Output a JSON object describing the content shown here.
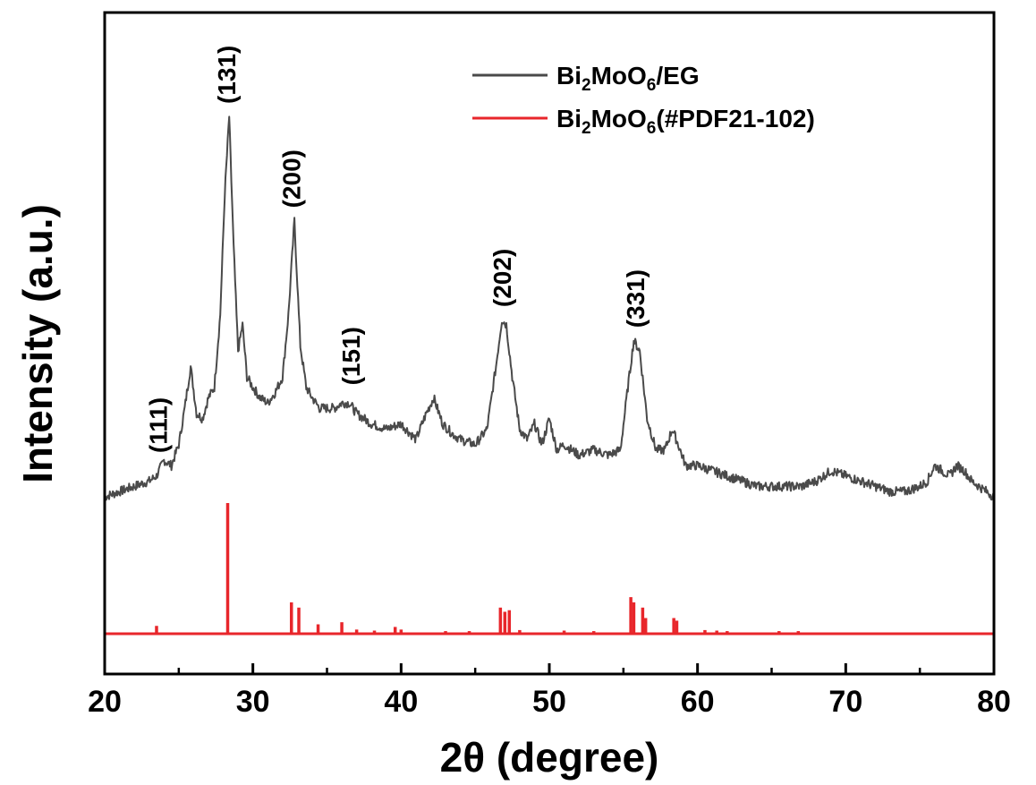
{
  "chart_data": {
    "type": "line",
    "xlabel": "2θ (degree)",
    "ylabel": "Intensity (a.u.)",
    "xlim": [
      20,
      80
    ],
    "ylim": [
      0,
      100
    ],
    "x_ticks": [
      "20",
      "30",
      "40",
      "50",
      "60",
      "70",
      "80"
    ],
    "grid": false,
    "legend_position": "top-right",
    "series": [
      {
        "name": "Bi2MoO6/EG",
        "name_parts": {
          "a": "Bi",
          "sub1": "2",
          "b": "MoO",
          "sub2": "6",
          "c": "/EG"
        },
        "color": "#4a4a4a",
        "x": [
          20,
          21,
          22,
          23,
          23.5,
          24,
          24.5,
          25,
          25.4,
          25.8,
          26.2,
          26.6,
          27,
          27.4,
          27.8,
          28.1,
          28.4,
          28.7,
          29,
          29.3,
          29.6,
          30,
          30.5,
          31,
          31.5,
          32,
          32.4,
          32.8,
          33.2,
          33.6,
          34,
          34.5,
          35,
          35.5,
          36,
          36.5,
          37,
          37.5,
          38,
          39,
          40,
          41,
          41.7,
          42.2,
          42.8,
          43.5,
          44,
          45,
          45.8,
          46.4,
          46.8,
          47.1,
          47.5,
          48,
          48.5,
          49,
          49.5,
          50,
          50.5,
          51,
          52,
          53,
          54,
          54.8,
          55.3,
          55.7,
          56.1,
          56.6,
          57.2,
          57.8,
          58.3,
          58.7,
          59.2,
          60,
          61,
          62,
          63,
          64,
          65,
          66,
          67,
          68,
          69,
          70,
          71,
          72,
          73,
          74,
          75,
          75.5,
          76,
          76.5,
          77,
          77.5,
          78,
          78.5,
          79,
          79.5,
          80
        ],
        "y": [
          27,
          28,
          29,
          30,
          31,
          34,
          33,
          37,
          44,
          52,
          43,
          42,
          46,
          48,
          62,
          85,
          100,
          75,
          55,
          60,
          50,
          48,
          46,
          45,
          47,
          50,
          62,
          80,
          56,
          48,
          46,
          44,
          44,
          44,
          45,
          45,
          43,
          42,
          41,
          40,
          41,
          38,
          43,
          46,
          41,
          39,
          38,
          37,
          40,
          52,
          61,
          60,
          50,
          40,
          38,
          41,
          37,
          42,
          36,
          37,
          35,
          36,
          35,
          36,
          48,
          57,
          55,
          42,
          36,
          36,
          40,
          37,
          33,
          33,
          32,
          31,
          30,
          29,
          29,
          29,
          29,
          30,
          32,
          31,
          30,
          29,
          28,
          28,
          29,
          30,
          33,
          32,
          31,
          33,
          32,
          30,
          29,
          28,
          27
        ]
      },
      {
        "name": "Bi2MoO6(#PDF21-102)",
        "name_parts": {
          "a": "Bi",
          "sub1": "2",
          "b": "MoO",
          "sub2": "6",
          "c": "(#PDF21-102)"
        },
        "color": "#e8262b",
        "baseline": 0,
        "sticks": [
          {
            "x": 23.5,
            "h": 1.5
          },
          {
            "x": 28.3,
            "h": 25
          },
          {
            "x": 32.6,
            "h": 6
          },
          {
            "x": 33.1,
            "h": 5
          },
          {
            "x": 34.4,
            "h": 1.8
          },
          {
            "x": 36.0,
            "h": 2.2
          },
          {
            "x": 37.0,
            "h": 0.8
          },
          {
            "x": 38.2,
            "h": 0.6
          },
          {
            "x": 39.6,
            "h": 1.3
          },
          {
            "x": 40.0,
            "h": 0.8
          },
          {
            "x": 43.0,
            "h": 0.5
          },
          {
            "x": 44.6,
            "h": 0.5
          },
          {
            "x": 46.7,
            "h": 5
          },
          {
            "x": 47.0,
            "h": 4.2
          },
          {
            "x": 47.3,
            "h": 4.5
          },
          {
            "x": 48.0,
            "h": 0.7
          },
          {
            "x": 51.0,
            "h": 0.6
          },
          {
            "x": 53.0,
            "h": 0.5
          },
          {
            "x": 55.5,
            "h": 7
          },
          {
            "x": 55.7,
            "h": 6
          },
          {
            "x": 56.3,
            "h": 5
          },
          {
            "x": 56.5,
            "h": 3
          },
          {
            "x": 58.4,
            "h": 3
          },
          {
            "x": 58.6,
            "h": 2.5
          },
          {
            "x": 60.5,
            "h": 0.7
          },
          {
            "x": 61.3,
            "h": 0.6
          },
          {
            "x": 62.0,
            "h": 0.5
          },
          {
            "x": 65.5,
            "h": 0.5
          },
          {
            "x": 66.8,
            "h": 0.5
          }
        ]
      }
    ],
    "annotations": [
      {
        "text": "(111)",
        "x": 23.6,
        "y": 33
      },
      {
        "text": "(131)",
        "x": 28.2,
        "y": 100
      },
      {
        "text": "(200)",
        "x": 32.6,
        "y": 80
      },
      {
        "text": "(151)",
        "x": 36.6,
        "y": 46
      },
      {
        "text": "(202)",
        "x": 46.8,
        "y": 61
      },
      {
        "text": "(331)",
        "x": 55.8,
        "y": 57
      }
    ]
  }
}
